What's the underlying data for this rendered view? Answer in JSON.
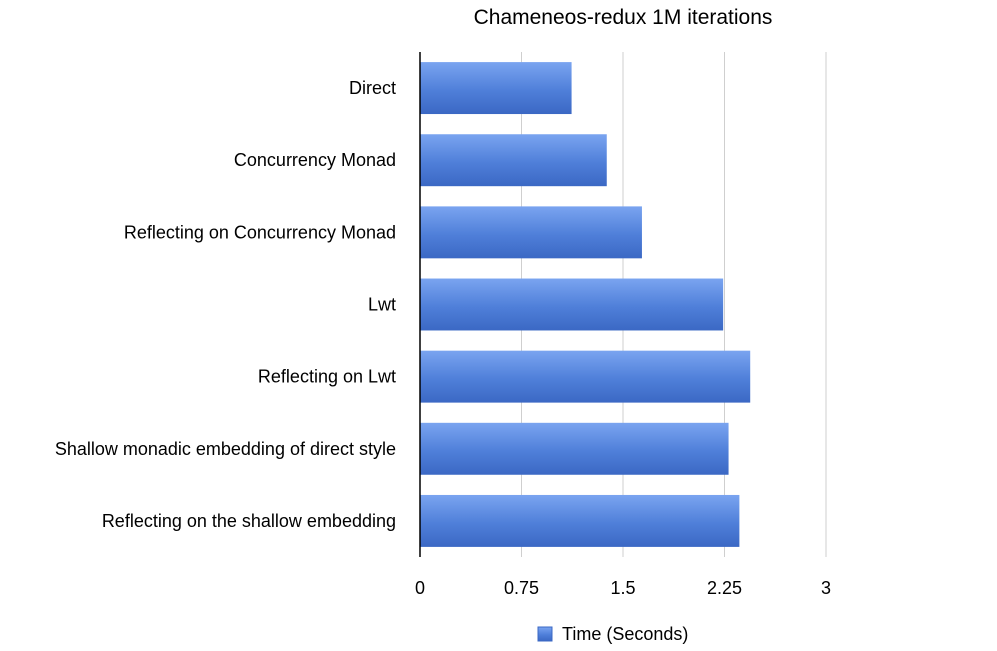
{
  "chart_data": {
    "type": "bar",
    "orientation": "horizontal",
    "title": "Chameneos-redux 1M iterations",
    "categories": [
      "Direct",
      "Concurrency Monad",
      "Reflecting on Concurrency Monad",
      "Lwt",
      "Reflecting on Lwt",
      "Shallow monadic embedding of direct style",
      "Reflecting on the shallow embedding"
    ],
    "series": [
      {
        "name": "Time (Seconds)",
        "values": [
          1.12,
          1.38,
          1.64,
          2.24,
          2.44,
          2.28,
          2.36
        ],
        "color": "#4f7fd9"
      }
    ],
    "xlim": [
      0,
      3
    ],
    "xticks": [
      "0",
      "0.75",
      "1.5",
      "2.25",
      "3"
    ],
    "xtick_values": [
      0,
      0.75,
      1.5,
      2.25,
      3
    ],
    "grid": true,
    "legend_position": "bottom"
  }
}
